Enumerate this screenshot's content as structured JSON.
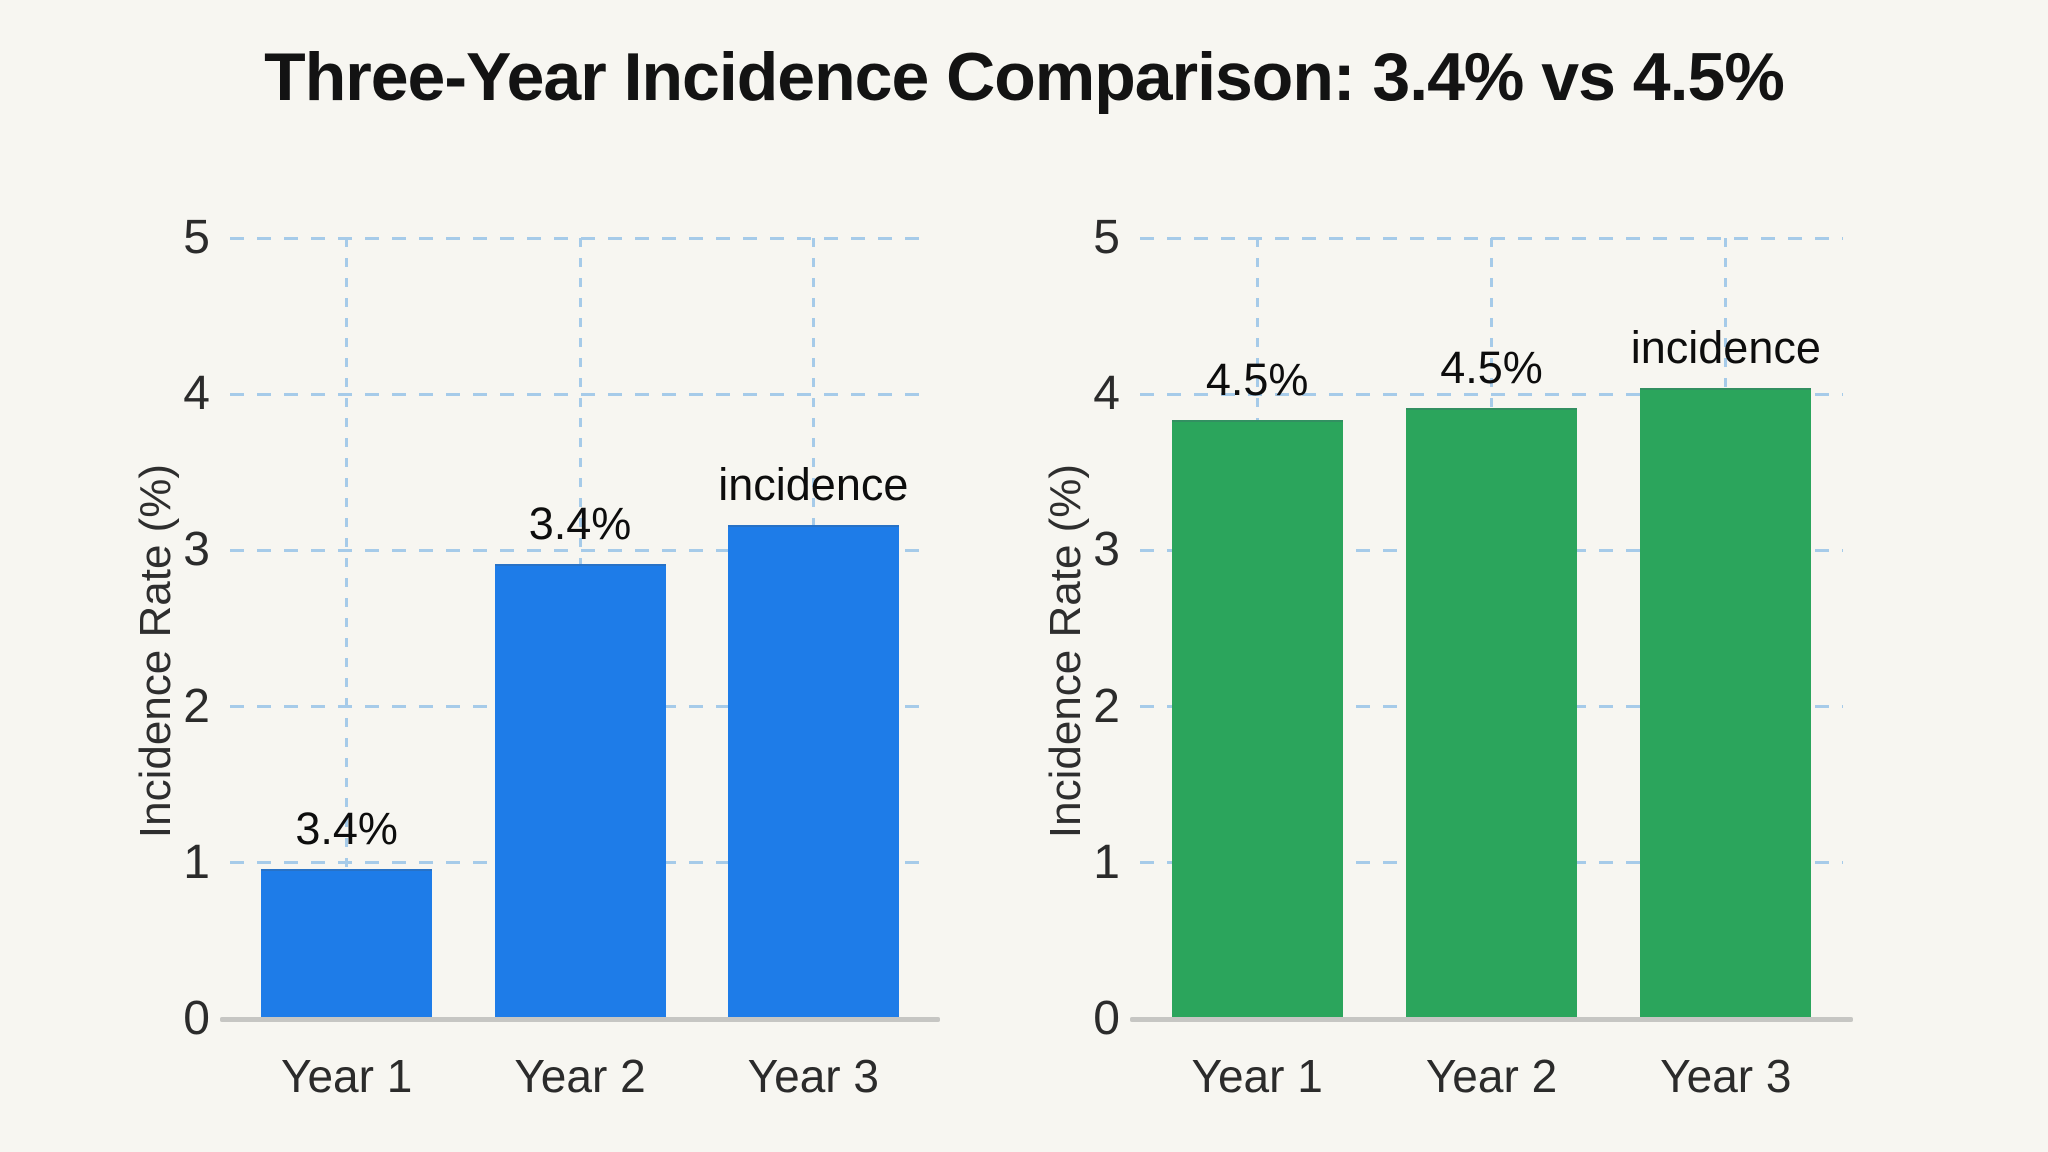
{
  "title": "Three-Year Incidence Comparison: 3.4% vs 4.5%",
  "colors": {
    "background": "#f7f6f1",
    "title_text": "#131313",
    "grid": "#a6cbe9",
    "axis_line": "#c6c6c3",
    "tick_text": "#2b2b2b",
    "bar_label_text": "#0d0d0d",
    "left_bar": "#1e7ce8",
    "right_bar": "#2ba55c"
  },
  "chart_data": [
    {
      "type": "bar",
      "panel": "left",
      "categories": [
        "Year 1",
        "Year 2",
        "Year 3"
      ],
      "values": [
        0.95,
        2.9,
        3.15
      ],
      "bar_labels": [
        "3.4%",
        "3.4%",
        "incidence"
      ],
      "bar_color": "#1e7ce8",
      "ylabel": "Incidence Rate (%)",
      "xlabel": "",
      "yticks": [
        "0",
        "1",
        "2",
        "3",
        "4",
        "5"
      ],
      "ylim": [
        0,
        5
      ],
      "grid": "dashed light-blue, horizontal at each tick and vertical at each bar center",
      "legend": "none"
    },
    {
      "type": "bar",
      "panel": "right",
      "categories": [
        "Year 1",
        "Year 2",
        "Year 3"
      ],
      "values": [
        3.82,
        3.9,
        4.03
      ],
      "bar_labels": [
        "4.5%",
        "4.5%",
        "incidence"
      ],
      "bar_color": "#2ba55c",
      "ylabel": "Incidence Rate (%)",
      "xlabel": "",
      "yticks": [
        "0",
        "1",
        "2",
        "3",
        "4",
        "5"
      ],
      "ylim": [
        0,
        5
      ],
      "grid": "dashed light-blue, horizontal at each tick and vertical at each bar center",
      "legend": "none"
    }
  ]
}
